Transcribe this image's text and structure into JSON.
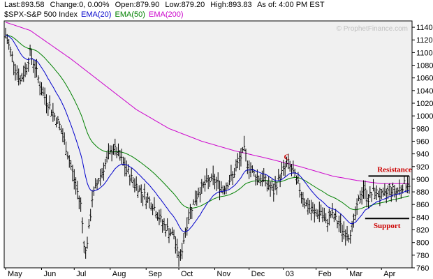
{
  "header": {
    "last": "Last:893.58",
    "change": "Change:0, 0.00%",
    "open": "Open:879.90",
    "low": "Low:879.20",
    "high": "High:893.83",
    "asof": "As of: 4:00 PM EST"
  },
  "legend": {
    "symbol": {
      "text": "$SPX-S&P 500 Index",
      "color": "#000000"
    },
    "ema20": {
      "text": "EMA(20)",
      "color": "#0000cc"
    },
    "ema50": {
      "text": "EMA(50)",
      "color": "#008000"
    },
    "ema200": {
      "text": "EMA(200)",
      "color": "#cc00cc"
    }
  },
  "watermark": "© ProphetFinance.com",
  "colors": {
    "plot_bg": "#f0f0f0",
    "price_bars": "#000000",
    "annotation": "#cc0000"
  },
  "chart_data": {
    "type": "line",
    "title": "",
    "xlabel": "",
    "ylabel": "",
    "ylim": [
      760,
      1150
    ],
    "yticks": [
      760,
      780,
      800,
      820,
      840,
      860,
      880,
      900,
      920,
      940,
      960,
      980,
      1000,
      1020,
      1040,
      1060,
      1080,
      1100,
      1120,
      1140
    ],
    "y_axis_side": "right",
    "grid": false,
    "x_months": [
      "May",
      "Jun",
      "Jul",
      "Aug",
      "Sep",
      "Oct",
      "Nov",
      "Dec",
      "03",
      "Feb",
      "Mar",
      "Apr"
    ],
    "x_month_start_day": [
      0,
      22,
      42,
      64,
      86,
      106,
      128,
      149,
      170,
      190,
      209,
      230
    ],
    "x_range_days": [
      0,
      247
    ],
    "price_anchors": [
      [
        0,
        1128
      ],
      [
        5,
        1085
      ],
      [
        9,
        1055
      ],
      [
        13,
        1080
      ],
      [
        15,
        1098
      ],
      [
        18,
        1078
      ],
      [
        22,
        1040
      ],
      [
        28,
        1010
      ],
      [
        33,
        985
      ],
      [
        37,
        950
      ],
      [
        41,
        910
      ],
      [
        44,
        880
      ],
      [
        46,
        860
      ],
      [
        48,
        800
      ],
      [
        49,
        785
      ],
      [
        51,
        820
      ],
      [
        53,
        870
      ],
      [
        57,
        900
      ],
      [
        62,
        930
      ],
      [
        66,
        950
      ],
      [
        71,
        930
      ],
      [
        76,
        905
      ],
      [
        83,
        880
      ],
      [
        90,
        860
      ],
      [
        96,
        830
      ],
      [
        103,
        810
      ],
      [
        105,
        785
      ],
      [
        107,
        775
      ],
      [
        110,
        820
      ],
      [
        113,
        850
      ],
      [
        118,
        880
      ],
      [
        123,
        895
      ],
      [
        127,
        900
      ],
      [
        133,
        885
      ],
      [
        139,
        905
      ],
      [
        144,
        935
      ],
      [
        146,
        945
      ],
      [
        149,
        920
      ],
      [
        153,
        905
      ],
      [
        158,
        900
      ],
      [
        164,
        880
      ],
      [
        167,
        900
      ],
      [
        170,
        915
      ],
      [
        173,
        925
      ],
      [
        176,
        910
      ],
      [
        180,
        885
      ],
      [
        184,
        860
      ],
      [
        189,
        845
      ],
      [
        193,
        850
      ],
      [
        196,
        830
      ],
      [
        199,
        845
      ],
      [
        201,
        840
      ],
      [
        204,
        828
      ],
      [
        207,
        818
      ],
      [
        210,
        812
      ],
      [
        213,
        830
      ],
      [
        216,
        865
      ],
      [
        219,
        885
      ],
      [
        222,
        870
      ],
      [
        225,
        880
      ],
      [
        228,
        878
      ],
      [
        231,
        870
      ],
      [
        235,
        885
      ],
      [
        239,
        880
      ],
      [
        243,
        890
      ],
      [
        246,
        893
      ]
    ],
    "series": [
      {
        "name": "EMA(20)",
        "color": "#0000cc",
        "period": 20
      },
      {
        "name": "EMA(50)",
        "color": "#008000",
        "period": 50
      },
      {
        "name": "EMA(200)",
        "color": "#cc00cc",
        "period": 200,
        "anchors": [
          [
            0,
            1148
          ],
          [
            15,
            1135
          ],
          [
            40,
            1090
          ],
          [
            60,
            1050
          ],
          [
            80,
            1010
          ],
          [
            100,
            980
          ],
          [
            120,
            960
          ],
          [
            140,
            945
          ],
          [
            160,
            933
          ],
          [
            180,
            920
          ],
          [
            200,
            905
          ],
          [
            215,
            898
          ],
          [
            230,
            893
          ],
          [
            247,
            893
          ]
        ]
      }
    ],
    "annotations": [
      {
        "text": "C",
        "day": 172,
        "price": 927
      },
      {
        "text": "Resistance",
        "day": 238,
        "price": 905,
        "line_from_day": 222,
        "line_to_day": 247
      },
      {
        "text": "Support",
        "day": 230,
        "price": 838,
        "line_from_day": 220,
        "line_to_day": 247
      }
    ]
  }
}
